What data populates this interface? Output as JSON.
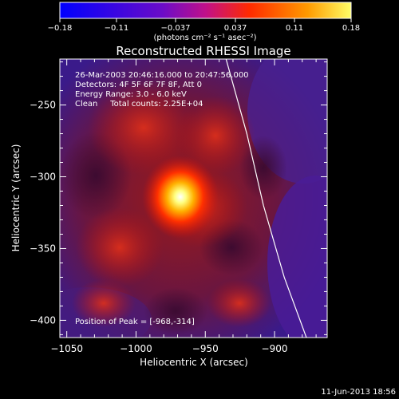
{
  "chart_data": {
    "type": "heatmap",
    "title": "Reconstructed RHESSI Image",
    "xlabel": "Heliocentric X (arcsec)",
    "ylabel": "Heliocentric Y (arcsec)",
    "xlim": [
      -1055,
      -862
    ],
    "ylim": [
      -412,
      -218
    ],
    "x_ticks": [
      {
        "value": -1050,
        "label": "−1050"
      },
      {
        "value": -1000,
        "label": "−1000"
      },
      {
        "value": -950,
        "label": "−950"
      },
      {
        "value": -900,
        "label": "−900"
      }
    ],
    "y_ticks": [
      {
        "value": -250,
        "label": "−250"
      },
      {
        "value": -300,
        "label": "−300"
      },
      {
        "value": -350,
        "label": "−350"
      },
      {
        "value": -400,
        "label": "−400"
      }
    ],
    "annotations": [
      "26-Mar-2003 20:46:16.000 to 20:47:56.000",
      "Detectors: 4F 5F 6F 7F 8F, Att 0",
      "Energy Range: 3.0 - 6.0 keV",
      "Clean     Total counts: 2.25E+04"
    ],
    "peak_label": "Position of Peak = [-968,-314]",
    "peak": {
      "x": -968,
      "y": -314
    },
    "colorbar": {
      "min": -0.18,
      "max": 0.18,
      "tick_values": [
        -0.18,
        -0.11,
        -0.037,
        0.037,
        0.11,
        0.18
      ],
      "tick_labels": [
        "−0.18",
        "−0.11",
        "−0.037",
        "0.037",
        "0.11",
        "0.18"
      ],
      "units_label": "(photons cm⁻² s⁻¹ asec⁻²)"
    },
    "limb_curve": [
      {
        "x": -935,
        "y": -218
      },
      {
        "x": -920,
        "y": -270
      },
      {
        "x": -908,
        "y": -320
      },
      {
        "x": -893,
        "y": -370
      },
      {
        "x": -877,
        "y": -412
      }
    ],
    "colors": {
      "background": "#000000",
      "map_low": "#3a1a8a",
      "map_mid": "#b01010",
      "map_high": "#ffffff",
      "limb_line": "#ffffff"
    }
  },
  "footer_date": "11-Jun-2013 18:56"
}
